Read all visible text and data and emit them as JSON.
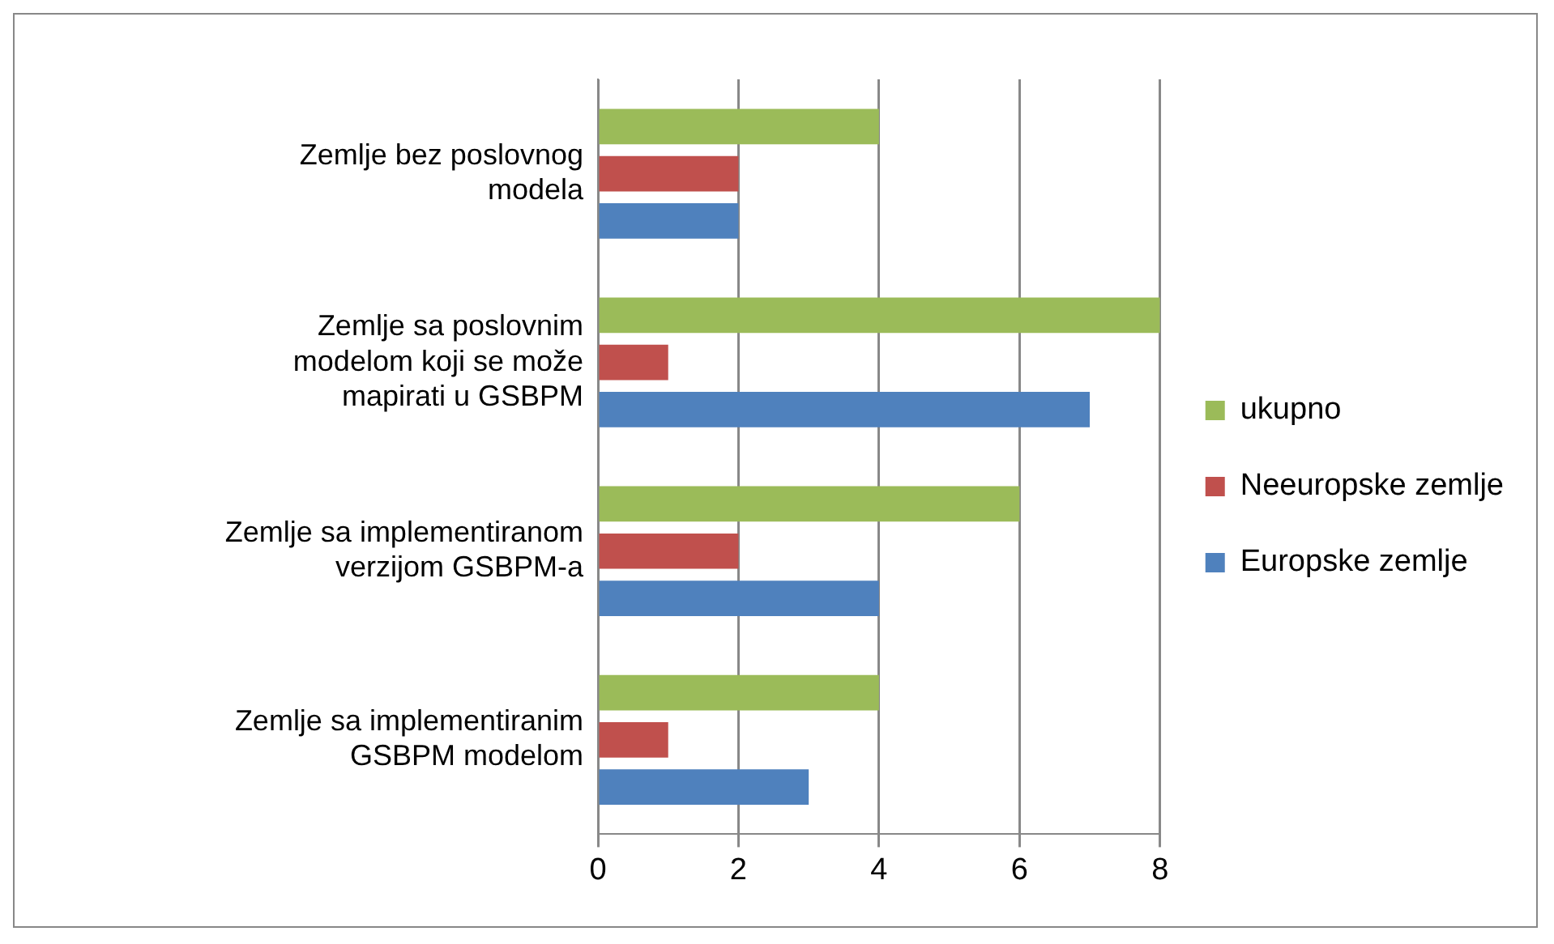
{
  "chart_data": {
    "type": "bar",
    "orientation": "horizontal",
    "categories": [
      "Zemlje bez poslovnog modela",
      "Zemlje sa poslovnim modelom koji se može mapirati u GSBPM",
      "Zemlje sa implementiranom verzijom GSBPM-a",
      "Zemlje sa implementiranim GSBPM modelom"
    ],
    "series": [
      {
        "name": "ukupno",
        "color": "#9bbb59",
        "values": [
          4,
          8,
          6,
          4
        ]
      },
      {
        "name": "Neeuropske zemlje",
        "color": "#c0504d",
        "values": [
          2,
          1,
          2,
          1
        ]
      },
      {
        "name": "Europske zemlje",
        "color": "#4f81bd",
        "values": [
          2,
          7,
          4,
          3
        ]
      }
    ],
    "xlim": [
      0,
      8
    ],
    "xticks": [
      0,
      2,
      4,
      6,
      8
    ],
    "grid": "x",
    "legend": "right"
  }
}
